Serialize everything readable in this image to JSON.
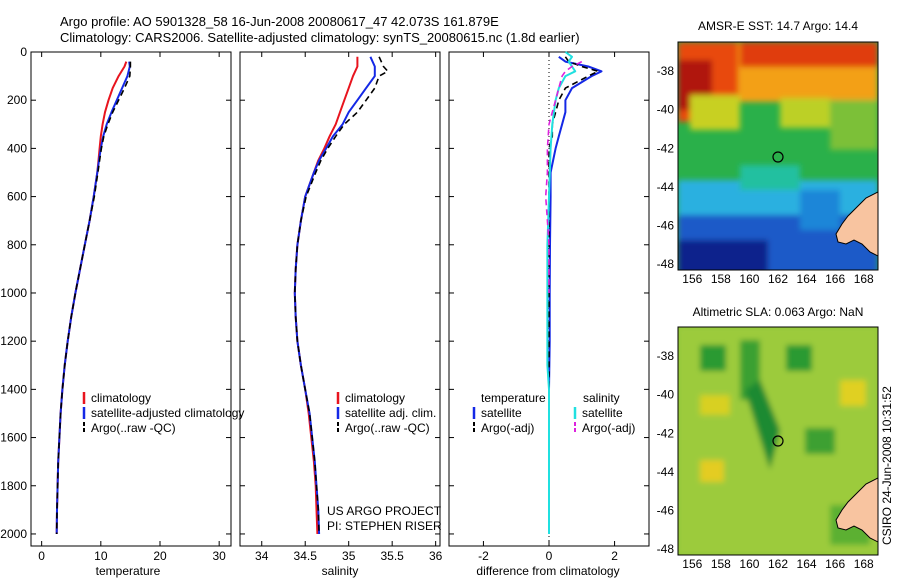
{
  "title_line1": "Argo profile: AO 5901328_58 16-Jun-2008 20080617_47 42.073S 161.879E",
  "title_line2": "Climatology: CARS2006. Satellite-adjusted climatology: synTS_20080615.nc (1.8d earlier)",
  "side_text": "CSIRO 24-Jun-2008 10:31:52",
  "project_line1": "US ARGO PROJECT",
  "project_line2": "PI: STEPHEN RISER",
  "chart_data": [
    {
      "type": "line",
      "xlabel": "temperature",
      "xlim": [
        -1.8,
        32
      ],
      "xticks": [
        0,
        10,
        20,
        30
      ],
      "ylim": [
        2050,
        0
      ],
      "yticks": [
        0,
        200,
        400,
        600,
        800,
        1000,
        1200,
        1400,
        1600,
        1800,
        2000
      ],
      "series": [
        {
          "name": "climatology",
          "color": "#e8141e",
          "width": 2,
          "dash": "",
          "depth": [
            40,
            60,
            100,
            150,
            200,
            250,
            300,
            350,
            400,
            450,
            500,
            600,
            700,
            800,
            900,
            1000,
            1100,
            1200,
            1300,
            1400,
            1500,
            1600,
            1700,
            1800,
            1900,
            2000
          ],
          "values": [
            14.3,
            14.0,
            13.0,
            12.0,
            11.3,
            10.7,
            10.3,
            10.0,
            9.8,
            9.6,
            9.4,
            8.8,
            8.1,
            7.3,
            6.5,
            5.7,
            5.0,
            4.4,
            3.9,
            3.5,
            3.2,
            3.0,
            2.8,
            2.7,
            2.6,
            2.55
          ]
        },
        {
          "name": "satellite-adjusted climatology",
          "color": "#1428e6",
          "width": 2,
          "dash": "",
          "depth": [
            40,
            60,
            100,
            150,
            200,
            250,
            300,
            350,
            400,
            450,
            500,
            600,
            700,
            800,
            900,
            1000,
            1100,
            1200,
            1300,
            1400,
            1500,
            1600,
            1700,
            1800,
            1900,
            2000
          ],
          "values": [
            14.8,
            14.9,
            14.5,
            13.6,
            12.7,
            11.8,
            11.0,
            10.4,
            10.0,
            9.7,
            9.4,
            8.8,
            8.1,
            7.3,
            6.5,
            5.7,
            5.0,
            4.4,
            3.9,
            3.5,
            3.2,
            3.0,
            2.8,
            2.7,
            2.6,
            2.55
          ]
        },
        {
          "name": "Argo(..raw -QC)",
          "color": "#000000",
          "width": 1.6,
          "dash": "6,4",
          "depth": [
            40,
            60,
            100,
            150,
            200,
            250,
            300,
            350,
            400,
            450,
            500,
            600,
            700,
            800,
            900,
            1000,
            1100,
            1200,
            1300,
            1400,
            1500,
            1600,
            1700,
            1800,
            1900,
            2000
          ],
          "values": [
            15.0,
            15.0,
            14.9,
            14.0,
            13.0,
            12.0,
            11.2,
            10.5,
            10.1,
            9.8,
            9.5,
            8.9,
            8.1,
            7.3,
            6.5,
            5.7,
            5.0,
            4.4,
            3.9,
            3.5,
            3.2,
            3.0,
            2.8,
            2.7,
            2.6,
            2.55
          ]
        }
      ],
      "legend": [
        "climatology",
        "satellite-adjusted climatology",
        "Argo(..raw -QC)"
      ]
    },
    {
      "type": "line",
      "xlabel": "salinity",
      "xlim": [
        33.75,
        36.05
      ],
      "xticks": [
        34,
        34.5,
        35,
        35.5,
        36
      ],
      "ylim": [
        2050,
        0
      ],
      "series": [
        {
          "name": "climatology",
          "color": "#e8141e",
          "width": 2,
          "dash": "",
          "depth": [
            20,
            60,
            100,
            150,
            200,
            250,
            300,
            350,
            400,
            450,
            500,
            600,
            700,
            800,
            900,
            1000,
            1100,
            1200,
            1300,
            1400,
            1500,
            1600,
            1700,
            1800,
            1900,
            2000
          ],
          "values": [
            35.1,
            35.1,
            35.05,
            35.0,
            34.95,
            34.9,
            34.85,
            34.78,
            34.72,
            34.65,
            34.6,
            34.5,
            34.45,
            34.41,
            34.39,
            34.38,
            34.39,
            34.41,
            34.45,
            34.5,
            34.54,
            34.57,
            34.6,
            34.62,
            34.63,
            34.64
          ]
        },
        {
          "name": "satellite adj. clim.",
          "color": "#1428e6",
          "width": 2,
          "dash": "",
          "depth": [
            20,
            60,
            100,
            150,
            200,
            250,
            300,
            350,
            400,
            450,
            500,
            600,
            700,
            800,
            900,
            1000,
            1100,
            1200,
            1300,
            1400,
            1500,
            1600,
            1700,
            1800,
            1900,
            2000
          ],
          "values": [
            35.25,
            35.3,
            35.3,
            35.2,
            35.1,
            35.0,
            34.93,
            34.82,
            34.74,
            34.66,
            34.6,
            34.5,
            34.45,
            34.41,
            34.39,
            34.38,
            34.39,
            34.41,
            34.45,
            34.5,
            34.55,
            34.58,
            34.61,
            34.63,
            34.65,
            34.66
          ]
        },
        {
          "name": "Argo(..raw -QC)",
          "color": "#000000",
          "width": 1.6,
          "dash": "6,4",
          "depth": [
            20,
            60,
            80,
            100,
            150,
            200,
            250,
            300,
            350,
            400,
            450,
            500,
            600,
            700,
            800,
            900,
            1000,
            1100,
            1200,
            1300,
            1400,
            1500,
            1600,
            1700,
            1800,
            1900,
            2000
          ],
          "values": [
            35.35,
            35.4,
            35.45,
            35.35,
            35.3,
            35.2,
            35.1,
            34.95,
            34.85,
            34.76,
            34.68,
            34.62,
            34.51,
            34.45,
            34.41,
            34.39,
            34.38,
            34.39,
            34.41,
            34.45,
            34.5,
            34.55,
            34.58,
            34.61,
            34.63,
            34.65,
            34.66
          ]
        }
      ],
      "legend": [
        "climatology",
        "satellite adj. clim.",
        "Argo(..raw -QC)"
      ]
    },
    {
      "type": "line",
      "xlabel": "difference from climatology",
      "xlim": [
        -3.05,
        3.05
      ],
      "xticks": [
        -2,
        0,
        2
      ],
      "ylim": [
        2050,
        0
      ],
      "series": [
        {
          "name": "temperature satellite",
          "color": "#1428e6",
          "width": 2,
          "dash": "",
          "depth": [
            20,
            40,
            60,
            80,
            100,
            150,
            200,
            250,
            300,
            350,
            400,
            500,
            600,
            800,
            1000,
            1200,
            1400,
            1600,
            1800,
            2000
          ],
          "values": [
            0.3,
            0.5,
            1.2,
            1.6,
            1.3,
            0.7,
            0.5,
            0.5,
            0.4,
            0.3,
            0.2,
            0.05,
            0.05,
            0.03,
            0.02,
            0.02,
            0.0,
            0.0,
            0.0,
            0.0
          ]
        },
        {
          "name": "temperature Argo(-adj)",
          "color": "#000000",
          "width": 1.6,
          "dash": "6,4",
          "depth": [
            20,
            40,
            60,
            80,
            100,
            150,
            200,
            250,
            300,
            350,
            400,
            500,
            600,
            800,
            1000,
            1200,
            1400,
            1600,
            1800,
            2000
          ],
          "values": [
            0.5,
            0.6,
            1.0,
            1.5,
            1.2,
            0.5,
            0.3,
            0.2,
            0.1,
            0.1,
            0.0,
            0.0,
            0.0,
            0.0,
            0.0,
            0.0,
            0.0,
            0.0,
            0.0,
            0.0
          ]
        },
        {
          "name": "salinity satellite",
          "color": "#20e0e0",
          "width": 2,
          "dash": "",
          "depth": [
            0,
            20,
            40,
            60,
            80,
            100,
            150,
            200,
            300,
            400,
            600,
            800,
            1000,
            1200,
            1300,
            1400,
            1600,
            1800,
            2000
          ],
          "values": [
            0.5,
            0.7,
            0.6,
            0.7,
            0.8,
            0.5,
            0.3,
            0.2,
            0.1,
            0.05,
            0.0,
            -0.05,
            -0.05,
            -0.05,
            -0.05,
            0.0,
            0.0,
            0.0,
            0.0
          ]
        },
        {
          "name": "salinity Argo(-adj)",
          "color": "#dd22dd",
          "width": 1.6,
          "dash": "6,4",
          "depth": [
            40,
            60,
            80,
            100,
            150,
            200,
            300,
            400,
            500,
            600,
            700,
            800,
            900,
            1000
          ],
          "values": [
            1.0,
            0.7,
            0.5,
            0.4,
            0.3,
            0.2,
            0.0,
            -0.05,
            -0.05,
            -0.1,
            -0.05,
            0.0,
            0.0,
            0.0
          ]
        }
      ],
      "legend_headers": [
        "temperature",
        "salinity"
      ],
      "legend": [
        "satellite",
        "Argo(-adj)",
        "satellite",
        "Argo(-adj)"
      ]
    },
    {
      "type": "heatmap",
      "title": "AMSR-E SST: 14.7 Argo: 14.4",
      "xticks": [
        156,
        158,
        160,
        162,
        164,
        166,
        168
      ],
      "yticks": [
        -38,
        -40,
        -42,
        -44,
        -46,
        -48
      ],
      "xlim": [
        155,
        169
      ],
      "ylim": [
        -36.5,
        -48.3
      ],
      "marker": {
        "lon": 161.879,
        "lat": -42.073
      }
    },
    {
      "type": "heatmap",
      "title": "Altimetric SLA: 0.063 Argo: NaN",
      "xticks": [
        156,
        158,
        160,
        162,
        164,
        166,
        168
      ],
      "yticks": [
        -38,
        -40,
        -42,
        -44,
        -46,
        -48
      ],
      "xlim": [
        155,
        169
      ],
      "ylim": [
        -36.5,
        -48.3
      ],
      "marker": {
        "lon": 161.879,
        "lat": -42.073
      }
    }
  ]
}
